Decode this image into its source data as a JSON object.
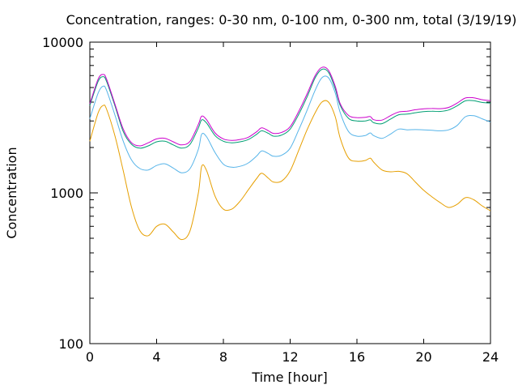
{
  "chart_data": {
    "type": "line",
    "title": "Concentration, ranges: 0-30 nm, 0-100 nm, 0-300 nm, total (3/19/19)",
    "xlabel": "Time [hour]",
    "ylabel": "Concentration",
    "xlim": [
      0,
      24
    ],
    "ylim": [
      100,
      10000
    ],
    "yscale": "log",
    "grid": false,
    "legend": "none",
    "x_ticks": [
      0,
      4,
      8,
      12,
      16,
      20,
      24
    ],
    "x_tick_labels": [
      "0",
      "4",
      "8",
      "12",
      "16",
      "20",
      "24"
    ],
    "y_ticks": [
      100,
      1000,
      10000
    ],
    "y_tick_labels": [
      "100",
      "1000",
      "10000"
    ],
    "x": [
      0,
      0.5,
      0.8,
      1,
      1.5,
      2,
      2.5,
      3,
      3.5,
      4,
      4.5,
      5,
      5.5,
      6,
      6.5,
      6.7,
      7,
      7.5,
      8,
      8.5,
      9,
      9.5,
      10,
      10.3,
      10.7,
      11,
      11.5,
      12,
      12.5,
      13,
      13.5,
      13.9,
      14.3,
      14.7,
      15,
      15.5,
      16,
      16.5,
      16.8,
      17,
      17.5,
      18,
      18.5,
      19,
      19.5,
      20,
      20.5,
      21,
      21.5,
      22,
      22.5,
      23,
      23.5,
      24
    ],
    "series": [
      {
        "color": "#e69f00",
        "values": [
          2200,
          3400,
          3800,
          3600,
          2400,
          1400,
          800,
          560,
          520,
          600,
          620,
          550,
          490,
          560,
          1000,
          1500,
          1400,
          950,
          780,
          780,
          880,
          1050,
          1250,
          1350,
          1250,
          1180,
          1200,
          1400,
          1900,
          2600,
          3400,
          4000,
          4000,
          3200,
          2300,
          1700,
          1620,
          1640,
          1700,
          1600,
          1420,
          1380,
          1390,
          1340,
          1180,
          1040,
          940,
          860,
          800,
          840,
          930,
          900,
          820,
          760
        ]
      },
      {
        "color": "#56b4e9",
        "values": [
          3100,
          4600,
          5100,
          4800,
          3300,
          2200,
          1650,
          1450,
          1420,
          1520,
          1560,
          1460,
          1360,
          1450,
          1950,
          2450,
          2350,
          1850,
          1550,
          1480,
          1500,
          1580,
          1760,
          1900,
          1820,
          1750,
          1780,
          1980,
          2600,
          3500,
          4800,
          5800,
          5800,
          4600,
          3400,
          2550,
          2380,
          2400,
          2500,
          2400,
          2300,
          2450,
          2650,
          2620,
          2630,
          2620,
          2600,
          2580,
          2620,
          2800,
          3200,
          3250,
          3100,
          2950
        ]
      },
      {
        "color": "#009e73",
        "values": [
          3800,
          5500,
          5900,
          5500,
          3800,
          2550,
          2100,
          1980,
          2050,
          2180,
          2200,
          2080,
          1980,
          2100,
          2700,
          3050,
          2900,
          2400,
          2200,
          2150,
          2180,
          2260,
          2450,
          2580,
          2480,
          2380,
          2420,
          2650,
          3300,
          4300,
          5800,
          6600,
          6300,
          4900,
          3800,
          3120,
          3000,
          3000,
          3050,
          2920,
          2880,
          3080,
          3300,
          3330,
          3400,
          3460,
          3480,
          3470,
          3550,
          3780,
          4080,
          4090,
          3980,
          3940
        ]
      },
      {
        "color": "#cc00cc",
        "values": [
          3900,
          5700,
          6100,
          5700,
          3900,
          2650,
          2150,
          2050,
          2150,
          2280,
          2300,
          2180,
          2080,
          2200,
          2850,
          3230,
          3050,
          2500,
          2280,
          2230,
          2260,
          2340,
          2550,
          2700,
          2580,
          2480,
          2520,
          2750,
          3450,
          4500,
          6000,
          6800,
          6500,
          5100,
          3900,
          3260,
          3160,
          3170,
          3210,
          3060,
          3040,
          3250,
          3440,
          3480,
          3560,
          3610,
          3630,
          3620,
          3690,
          3940,
          4260,
          4270,
          4150,
          4090
        ]
      }
    ]
  }
}
